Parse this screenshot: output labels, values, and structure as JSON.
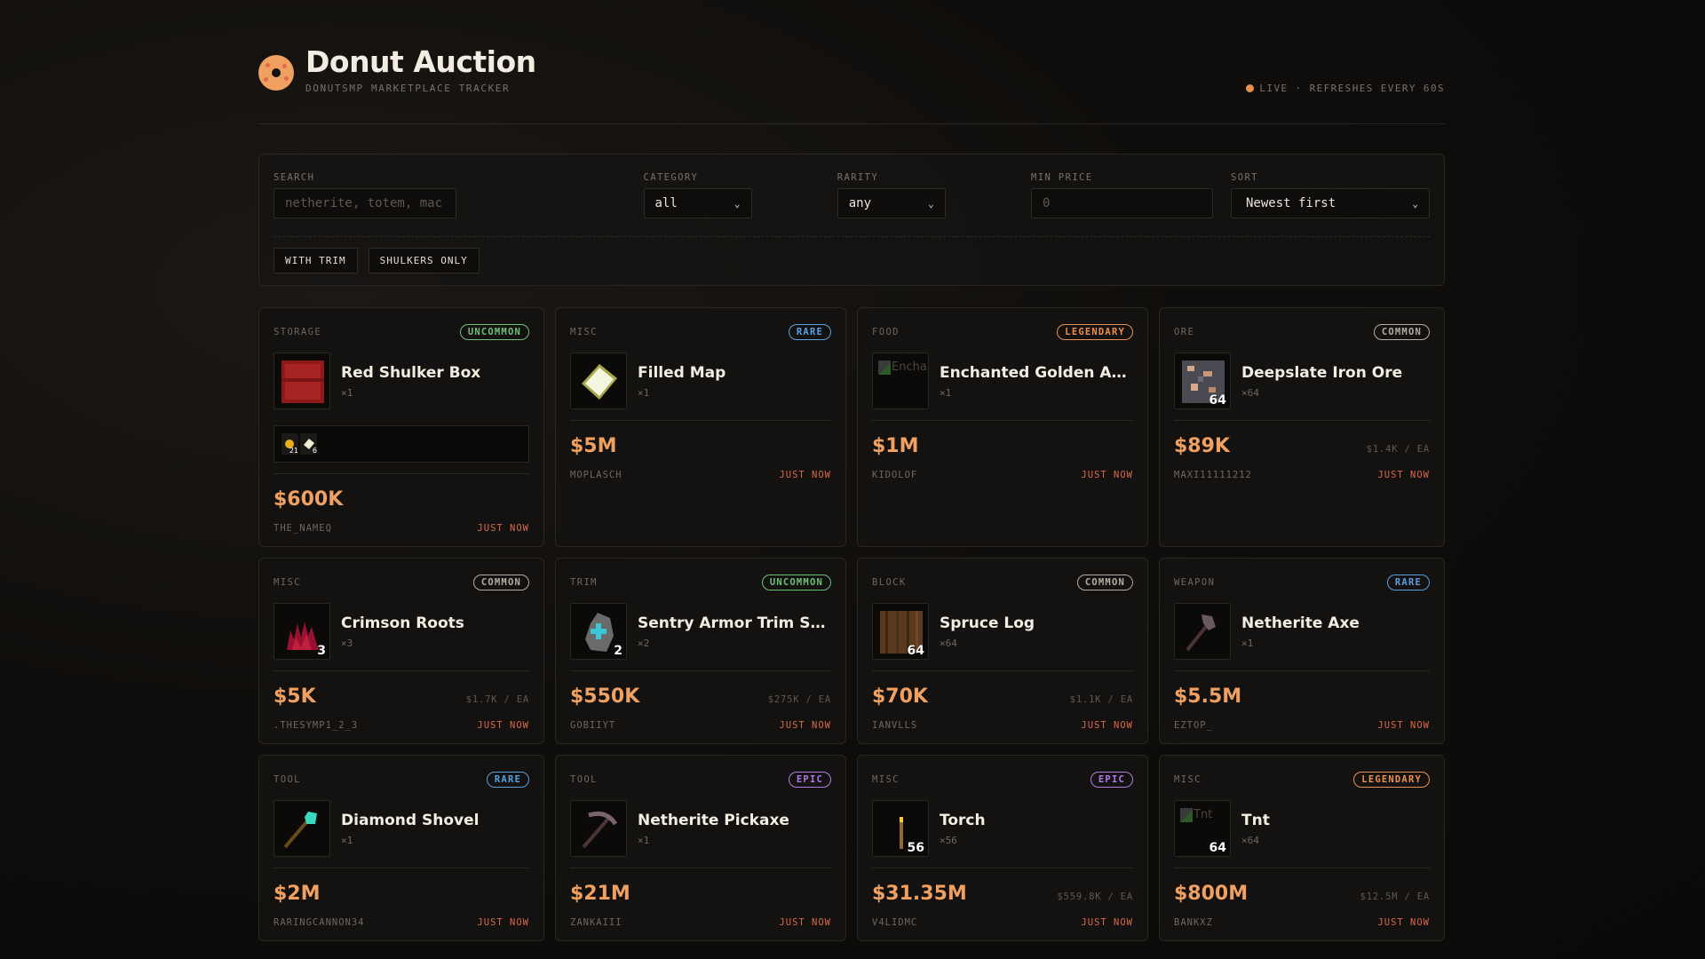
{
  "header": {
    "title": "Donut Auction",
    "subtitle": "DONUTSMP MARKETPLACE TRACKER",
    "status": "LIVE · REFRESHES EVERY 60S"
  },
  "colors": {
    "accent": "#f0a060",
    "time": "#d8694a",
    "common": "#b5aca2",
    "uncommon": "#6fbf7a",
    "rare": "#5a9fe0",
    "epic": "#b07ae8",
    "legendary": "#e8904f"
  },
  "filters": {
    "search": {
      "label": "SEARCH",
      "placeholder": "netherite, totem, mac",
      "value": ""
    },
    "category": {
      "label": "CATEGORY",
      "value": "all"
    },
    "rarity": {
      "label": "RARITY",
      "value": "any"
    },
    "min_price": {
      "label": "MIN PRICE",
      "placeholder": "0"
    },
    "sort": {
      "label": "SORT",
      "value": "Newest first"
    },
    "chips": [
      "WITH TRIM",
      "SHULKERS ONLY"
    ]
  },
  "listings": [
    {
      "category": "STORAGE",
      "rarity": "UNCOMMON",
      "rarity_key": "uncommon",
      "icon": "red-shulker-box",
      "name": "Red Shulker Box",
      "qty": "×1",
      "stack": "",
      "contents": [
        {
          "icon": "enchanted-golden-apple",
          "count": "21"
        },
        {
          "icon": "filled-map",
          "count": "6"
        }
      ],
      "price": "$600K",
      "each": "",
      "seller": "THE_NAMEQ",
      "time": "JUST NOW"
    },
    {
      "category": "MISC",
      "rarity": "RARE",
      "rarity_key": "rare",
      "icon": "filled-map",
      "name": "Filled Map",
      "qty": "×1",
      "stack": "",
      "price": "$5M",
      "each": "",
      "seller": "MOPLASCH",
      "time": "JUST NOW"
    },
    {
      "category": "FOOD",
      "rarity": "LEGENDARY",
      "rarity_key": "legendary",
      "icon": "broken-image",
      "alt": "Enchanted Golden Apple",
      "name": "Enchanted Golden Ap...",
      "qty": "×1",
      "stack": "",
      "price": "$1M",
      "each": "",
      "seller": "KIDOLOF",
      "time": "JUST NOW"
    },
    {
      "category": "ORE",
      "rarity": "COMMON",
      "rarity_key": "common",
      "icon": "deepslate-iron-ore",
      "name": "Deepslate Iron Ore",
      "qty": "×64",
      "stack": "64",
      "price": "$89K",
      "each": "$1.4K / EA",
      "seller": "MAXI11111212",
      "time": "JUST NOW"
    },
    {
      "category": "MISC",
      "rarity": "COMMON",
      "rarity_key": "common",
      "icon": "crimson-roots",
      "name": "Crimson Roots",
      "qty": "×3",
      "stack": "3",
      "price": "$5K",
      "each": "$1.7K / EA",
      "seller": ".THESYMP1_2_3",
      "time": "JUST NOW"
    },
    {
      "category": "TRIM",
      "rarity": "UNCOMMON",
      "rarity_key": "uncommon",
      "icon": "armor-trim",
      "name": "Sentry Armor Trim Sm...",
      "qty": "×2",
      "stack": "2",
      "price": "$550K",
      "each": "$275K / EA",
      "seller": "GOBIIYT",
      "time": "JUST NOW"
    },
    {
      "category": "BLOCK",
      "rarity": "COMMON",
      "rarity_key": "common",
      "icon": "spruce-log",
      "name": "Spruce Log",
      "qty": "×64",
      "stack": "64",
      "price": "$70K",
      "each": "$1.1K / EA",
      "seller": "IANVLLS",
      "time": "JUST NOW"
    },
    {
      "category": "WEAPON",
      "rarity": "RARE",
      "rarity_key": "rare",
      "icon": "netherite-axe",
      "name": "Netherite Axe",
      "qty": "×1",
      "stack": "",
      "price": "$5.5M",
      "each": "",
      "seller": "EZTOP_",
      "time": "JUST NOW"
    },
    {
      "category": "TOOL",
      "rarity": "RARE",
      "rarity_key": "rare",
      "icon": "diamond-shovel",
      "name": "Diamond Shovel",
      "qty": "×1",
      "stack": "",
      "price": "$2M",
      "each": "",
      "seller": "RARINGCANNON34",
      "time": "JUST NOW"
    },
    {
      "category": "TOOL",
      "rarity": "EPIC",
      "rarity_key": "epic",
      "icon": "netherite-pickaxe",
      "name": "Netherite Pickaxe",
      "qty": "×1",
      "stack": "",
      "price": "$21M",
      "each": "",
      "seller": "ZANKAIII",
      "time": "JUST NOW"
    },
    {
      "category": "MISC",
      "rarity": "EPIC",
      "rarity_key": "epic",
      "icon": "torch",
      "name": "Torch",
      "qty": "×56",
      "stack": "56",
      "price": "$31.35M",
      "each": "$559.8K / EA",
      "seller": "V4LIDMC",
      "time": "JUST NOW"
    },
    {
      "category": "MISC",
      "rarity": "LEGENDARY",
      "rarity_key": "legendary",
      "icon": "broken-image",
      "alt": "Tnt",
      "name": "Tnt",
      "qty": "×64",
      "stack": "64",
      "price": "$800M",
      "each": "$12.5M / EA",
      "seller": "BANKXZ",
      "time": "JUST NOW"
    }
  ]
}
